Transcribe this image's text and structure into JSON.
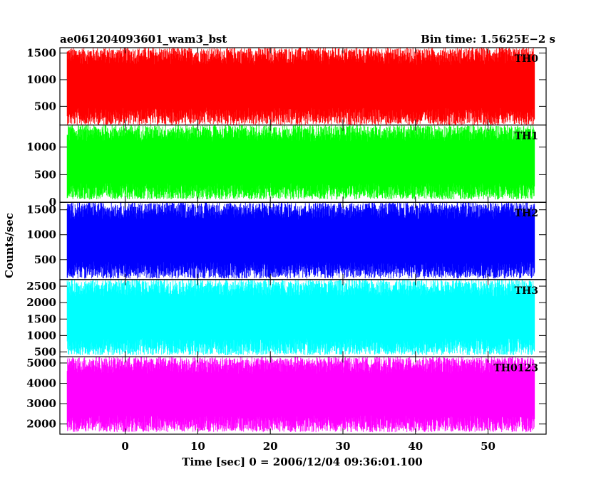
{
  "chart_data": {
    "type": "line",
    "title_left": "ae061204093601_wam3_bst",
    "title_right": "Bin time: 1.5625E−2 s",
    "xlabel": "Time [sec] 0 = 2006/12/04 09:36:01.100",
    "ylabel": "Counts/sec",
    "xlim": [
      -9,
      58
    ],
    "x_ticks": [
      0,
      10,
      20,
      30,
      40,
      50
    ],
    "x_tick_labels": [
      "0",
      "10",
      "20",
      "30",
      "40",
      "50"
    ],
    "data_x_range": [
      -8,
      56.4
    ],
    "bin_time_s": 0.015625,
    "grid": false,
    "panels": [
      {
        "name": "TH0",
        "color": "#ff0000",
        "ylim": [
          150,
          1600
        ],
        "y_ticks": [
          500,
          1000,
          1500
        ],
        "y_tick_labels": [
          "500",
          "1000",
          "1500"
        ],
        "approx_range": [
          150,
          1600
        ]
      },
      {
        "name": "TH1",
        "color": "#00ff00",
        "ylim": [
          0,
          1400
        ],
        "y_ticks": [
          0,
          500,
          1000
        ],
        "y_tick_labels": [
          "0",
          "500",
          "1000"
        ],
        "approx_range": [
          50,
          1400
        ]
      },
      {
        "name": "TH2",
        "color": "#0000ff",
        "ylim": [
          100,
          1650
        ],
        "y_ticks": [
          500,
          1000,
          1500
        ],
        "y_tick_labels": [
          "500",
          "1000",
          "1500"
        ],
        "approx_range": [
          120,
          1650
        ]
      },
      {
        "name": "TH3",
        "color": "#00ffff",
        "ylim": [
          350,
          2700
        ],
        "y_ticks": [
          500,
          1000,
          1500,
          2000,
          2500
        ],
        "y_tick_labels": [
          "500",
          "1000",
          "1500",
          "2000",
          "2500"
        ],
        "approx_range": [
          400,
          2700
        ]
      },
      {
        "name": "TH0123",
        "color": "#ff00ff",
        "ylim": [
          1500,
          5300
        ],
        "y_ticks": [
          2000,
          3000,
          4000,
          5000
        ],
        "y_tick_labels": [
          "2000",
          "3000",
          "4000",
          "5000"
        ],
        "approx_range": [
          1600,
          5300
        ]
      }
    ]
  }
}
